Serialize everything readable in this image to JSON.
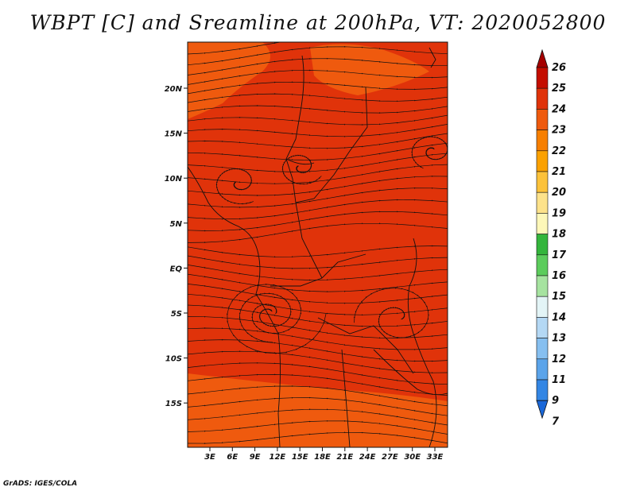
{
  "title": "WBPT [C] and Sreamline at 200hPa, VT: 2020052800",
  "credit": "GrADS: IGES/COLA",
  "map": {
    "lon_ticks": [
      "3E",
      "6E",
      "9E",
      "12E",
      "15E",
      "18E",
      "21E",
      "24E",
      "27E",
      "30E",
      "33E"
    ],
    "lat_ticks": [
      "20N",
      "15N",
      "10N",
      "5N",
      "EQ",
      "5S",
      "10S",
      "15S"
    ],
    "field_color": "#e0330a",
    "warm_patch_color": "#ef5a0e",
    "line_color": "#111111"
  },
  "colorbar": {
    "labels": [
      "26",
      "25",
      "24",
      "23",
      "22",
      "21",
      "20",
      "19",
      "18",
      "17",
      "16",
      "15",
      "14",
      "13",
      "12",
      "11",
      "9",
      "7"
    ],
    "colors": [
      "#a50000",
      "#c40e00",
      "#e0330a",
      "#ef5a0e",
      "#f77f00",
      "#fba100",
      "#fcc23a",
      "#fde28a",
      "#fdf7b8",
      "#34b53c",
      "#5ccc5c",
      "#a6e3a0",
      "#e3f4f6",
      "#b4d8f4",
      "#86bff0",
      "#5ba4ea",
      "#3386e4",
      "#1a67d8"
    ]
  }
}
